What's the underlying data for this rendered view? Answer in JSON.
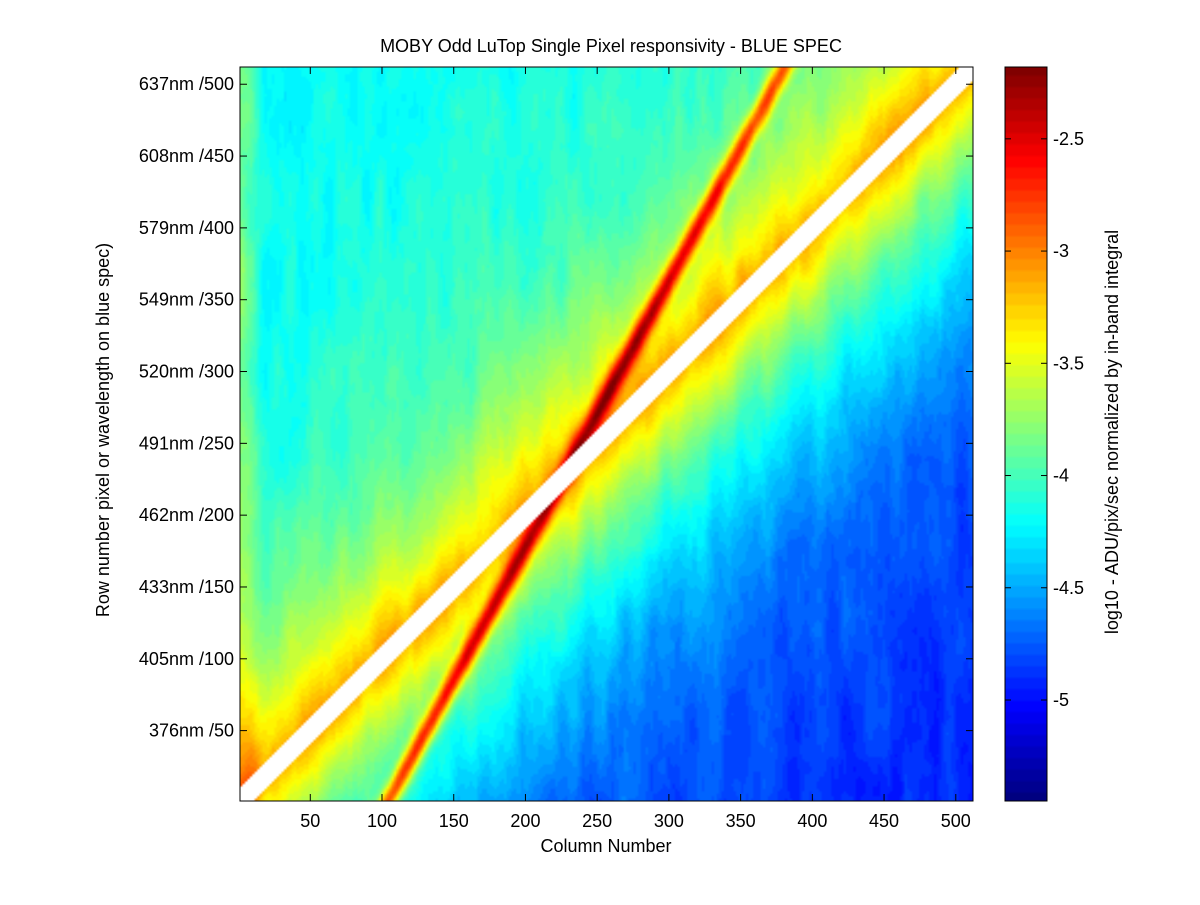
{
  "chart_data": {
    "type": "heatmap",
    "title": "MOBY Odd LuTop Single Pixel responsivity - BLUE SPEC",
    "xlabel": "Column Number",
    "ylabel": "Row number pixel or wavelength on blue spec)",
    "colorbar_label": "log10 - ADU/pix/sec normalized by in-band integral",
    "colormap": "jet",
    "xlim": [
      1,
      512
    ],
    "ylim": [
      1,
      512
    ],
    "clim": [
      -5.45,
      -2.18
    ],
    "x_ticks": [
      50,
      100,
      150,
      200,
      250,
      300,
      350,
      400,
      450,
      500
    ],
    "x_tick_labels": [
      "50",
      "100",
      "150",
      "200",
      "250",
      "300",
      "350",
      "400",
      "450",
      "500"
    ],
    "y_ticks": [
      50,
      100,
      150,
      200,
      250,
      300,
      350,
      400,
      450,
      500
    ],
    "y_tick_labels": [
      "376nm /50",
      "405nm /100",
      "433nm /150",
      "462nm /200",
      "491nm /250",
      "520nm /300",
      "549nm /350",
      "579nm /400",
      "608nm /450",
      "637nm /500"
    ],
    "colorbar_ticks": [
      -5,
      -4.5,
      -4,
      -3.5,
      -3,
      -2.5
    ],
    "colorbar_tick_labels": [
      "-5",
      "-4.5",
      "-4",
      "-3.5",
      "-3",
      "-2.5"
    ],
    "features": {
      "diagonal_band_value": -3.05,
      "ghost_line": {
        "from": [
          120,
          30
        ],
        "to": [
          385,
          520
        ],
        "peak_value": -2.2
      },
      "upper_left_background": -4.2,
      "lower_right_background": -4.95,
      "masked_diagonal_width_px": 20
    }
  }
}
